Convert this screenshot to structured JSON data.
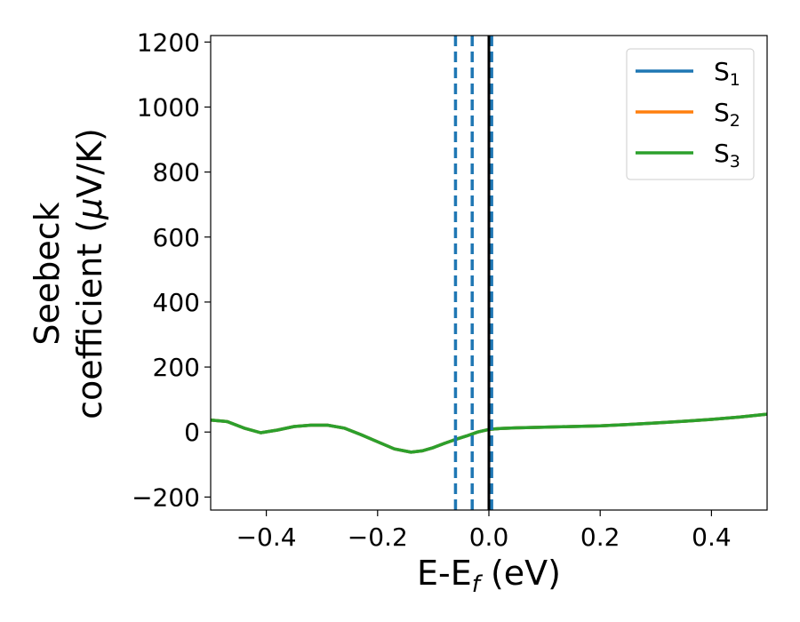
{
  "chart_data": {
    "type": "line",
    "title": "",
    "xlabel": {
      "text": "E-E",
      "subscript": "f",
      "suffix": " (eV)"
    },
    "ylabel": {
      "line1": "Seebeck",
      "line2_pre": "coefficient  (",
      "line2_greek": "μ",
      "line2_post": "V/K)"
    },
    "xlim": [
      -0.5,
      0.5
    ],
    "ylim": [
      -240,
      1220
    ],
    "x_ticks": [
      -0.4,
      -0.2,
      0.0,
      0.2,
      0.4
    ],
    "x_tick_labels": [
      "−0.4",
      "−0.2",
      "0.0",
      "0.2",
      "0.4"
    ],
    "y_ticks": [
      -200,
      0,
      200,
      400,
      600,
      800,
      1000,
      1200
    ],
    "y_tick_labels": [
      "−200",
      "0",
      "200",
      "400",
      "600",
      "800",
      "1000",
      "1200"
    ],
    "grid": false,
    "legend_position": "top-right",
    "series": [
      {
        "name": "S",
        "subscript": "1",
        "color": "#1f77b4",
        "x": [
          -0.5,
          -0.47,
          -0.44,
          -0.41,
          -0.38,
          -0.35,
          -0.32,
          -0.29,
          -0.26,
          -0.23,
          -0.2,
          -0.17,
          -0.14,
          -0.12,
          -0.1,
          -0.08,
          -0.06,
          -0.04,
          -0.02,
          0.0,
          0.02,
          0.05,
          0.1,
          0.15,
          0.2,
          0.25,
          0.3,
          0.35,
          0.4,
          0.45,
          0.5
        ],
        "y": [
          37,
          32,
          12,
          -2,
          6,
          17,
          21,
          21,
          12,
          -8,
          -30,
          -52,
          -62,
          -58,
          -48,
          -35,
          -23,
          -12,
          0,
          8,
          11,
          13,
          15,
          17,
          19,
          23,
          28,
          33,
          39,
          46,
          55
        ]
      },
      {
        "name": "S",
        "subscript": "2",
        "color": "#ff7f0e",
        "x": [
          -0.5,
          -0.47,
          -0.44,
          -0.41,
          -0.38,
          -0.35,
          -0.32,
          -0.29,
          -0.26,
          -0.23,
          -0.2,
          -0.17,
          -0.14,
          -0.12,
          -0.1,
          -0.08,
          -0.06,
          -0.04,
          -0.02,
          0.0,
          0.02,
          0.05,
          0.1,
          0.15,
          0.2,
          0.25,
          0.3,
          0.35,
          0.4,
          0.45,
          0.5
        ],
        "y": [
          37,
          32,
          12,
          -2,
          6,
          17,
          21,
          21,
          12,
          -8,
          -30,
          -52,
          -62,
          -58,
          -48,
          -35,
          -23,
          -12,
          0,
          8,
          11,
          13,
          15,
          17,
          19,
          23,
          28,
          33,
          39,
          46,
          55
        ]
      },
      {
        "name": "S",
        "subscript": "3",
        "color": "#2ca02c",
        "x": [
          -0.5,
          -0.47,
          -0.44,
          -0.41,
          -0.38,
          -0.35,
          -0.32,
          -0.29,
          -0.26,
          -0.23,
          -0.2,
          -0.17,
          -0.14,
          -0.12,
          -0.1,
          -0.08,
          -0.06,
          -0.04,
          -0.02,
          0.0,
          0.02,
          0.05,
          0.1,
          0.15,
          0.2,
          0.25,
          0.3,
          0.35,
          0.4,
          0.45,
          0.5
        ],
        "y": [
          37,
          32,
          12,
          -2,
          6,
          17,
          21,
          21,
          12,
          -8,
          -30,
          -52,
          -62,
          -58,
          -48,
          -35,
          -23,
          -12,
          0,
          8,
          11,
          13,
          15,
          17,
          19,
          23,
          28,
          33,
          39,
          46,
          55
        ]
      }
    ],
    "vertical_lines": [
      {
        "x": -0.06,
        "style": "dashed",
        "color": "#1f77b4"
      },
      {
        "x": -0.03,
        "style": "dashed",
        "color": "#1f77b4"
      },
      {
        "x": 0.005,
        "style": "dashed",
        "color": "#1f77b4"
      },
      {
        "x": 0.0,
        "style": "solid",
        "color": "#000000"
      }
    ]
  }
}
